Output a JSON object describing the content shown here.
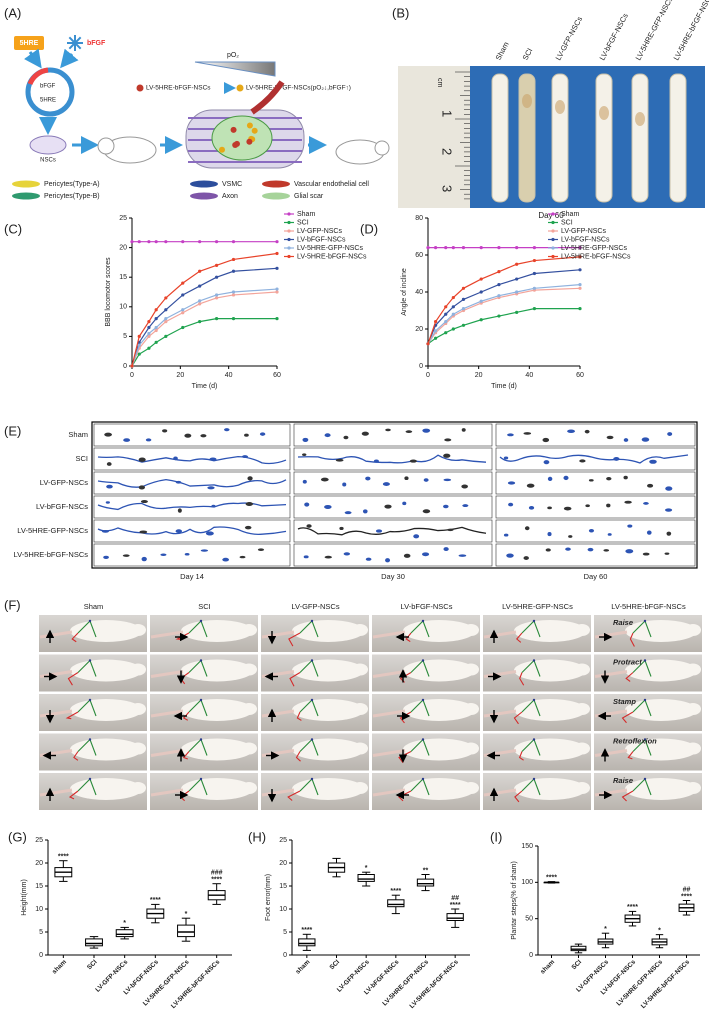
{
  "panel_labels": [
    "(A)",
    "(B)",
    "(C)",
    "(D)",
    "(E)",
    "(F)",
    "(G)",
    "(H)",
    "(I)"
  ],
  "diagram": {
    "gene": "5HRE",
    "growth_factor": "bFGF",
    "plasmid_labels": [
      "bFGF",
      "5HRE"
    ],
    "cells": "NSCs",
    "oxygen": "pO₂",
    "cell_before": "LV-5HRE-bFGF-NSCs",
    "cell_after": "LV-5HRE-bFGF-NSCs(pO₂↓,bFGF↑)",
    "legend": [
      "Pericytes(Type-A)",
      "Pericytes(Type-B)",
      "VSMC",
      "Axon",
      "Vascular endothelial cell",
      "Glial scar"
    ]
  },
  "spinal_cords": {
    "groups": [
      "Sham",
      "SCI",
      "LV-GFP-NSCs",
      "LV-bFGF-NSCs",
      "LV-5HRE-GFP-NSCs",
      "LV-5HRE-bFGF-NSCs"
    ],
    "caption": "Day 60",
    "ruler_unit": "cm",
    "ruler_marks": [
      "1",
      "2",
      "3"
    ]
  },
  "footprints": {
    "groups": [
      "Sham",
      "SCI",
      "LV-GFP-NSCs",
      "LV-bFGF-NSCs",
      "LV-5HRE-GFP-NSCs",
      "LV-5HRE-bFGF-NSCs"
    ],
    "days": [
      "Day 14",
      "Day 30",
      "Day 60"
    ]
  },
  "gait": {
    "groups": [
      "Sham",
      "SCI",
      "LV-GFP-NSCs",
      "LV-bFGF-NSCs",
      "LV-5HRE-GFP-NSCs",
      "LV-5HRE-bFGF-NSCs"
    ],
    "phases": [
      "Raise",
      "Protract",
      "Stamp",
      "Retroflexion",
      "Raise"
    ]
  },
  "chart_data": [
    {
      "type": "line",
      "ylabel": "BBB locomotor scores",
      "xlabel": "Time (d)",
      "legend": "upper right",
      "x": [
        0,
        3,
        7,
        10,
        14,
        21,
        28,
        35,
        42,
        60
      ],
      "xlim": [
        0,
        60
      ],
      "xticks": [
        0,
        20,
        40,
        60
      ],
      "ylim": [
        0,
        25
      ],
      "yticks": [
        0,
        5,
        10,
        15,
        20,
        25
      ],
      "series": [
        {
          "name": "Sham",
          "color": "#c53fc5",
          "values": [
            21,
            21,
            21,
            21,
            21,
            21,
            21,
            21,
            21,
            21
          ]
        },
        {
          "name": "SCI",
          "color": "#1fa34f",
          "values": [
            0,
            2,
            3,
            4,
            5,
            6.5,
            7.5,
            8,
            8,
            8
          ]
        },
        {
          "name": "LV-GFP-NSCs",
          "color": "#f3a49a",
          "values": [
            0,
            3,
            5,
            6,
            7.5,
            9,
            10.5,
            11.5,
            12,
            12.5
          ]
        },
        {
          "name": "LV-bFGF-NSCs",
          "color": "#34509f",
          "values": [
            0,
            4,
            6.5,
            8,
            9.5,
            12,
            13.5,
            15,
            16,
            16.5
          ]
        },
        {
          "name": "LV-5HRE-GFP-NSCs",
          "color": "#8fb2de",
          "values": [
            0,
            3.5,
            5.5,
            6.5,
            8,
            9.5,
            11,
            12,
            12.5,
            13
          ]
        },
        {
          "name": "LV-5HRE-bFGF-NSCs",
          "color": "#e8432a",
          "values": [
            0,
            5,
            7.5,
            9.5,
            11.5,
            14,
            16,
            17,
            18,
            19
          ]
        }
      ]
    },
    {
      "type": "line",
      "ylabel": "Angle of incline",
      "xlabel": "Time (d)",
      "legend": "upper right",
      "x": [
        0,
        3,
        7,
        10,
        14,
        21,
        28,
        35,
        42,
        60
      ],
      "xlim": [
        0,
        60
      ],
      "xticks": [
        0,
        20,
        40,
        60
      ],
      "ylim": [
        0,
        80
      ],
      "yticks": [
        0,
        20,
        40,
        60,
        80
      ],
      "series": [
        {
          "name": "Sham",
          "color": "#c53fc5",
          "values": [
            64,
            64,
            64,
            64,
            64,
            64,
            64,
            64,
            64,
            64
          ]
        },
        {
          "name": "SCI",
          "color": "#1fa34f",
          "values": [
            12,
            15,
            18,
            20,
            22,
            25,
            27,
            29,
            31,
            31
          ]
        },
        {
          "name": "LV-GFP-NSCs",
          "color": "#f3a49a",
          "values": [
            12,
            18,
            23,
            27,
            30,
            34,
            37,
            39,
            41,
            42
          ]
        },
        {
          "name": "LV-bFGF-NSCs",
          "color": "#34509f",
          "values": [
            12,
            22,
            28,
            32,
            36,
            40,
            44,
            47,
            50,
            52
          ]
        },
        {
          "name": "LV-5HRE-GFP-NSCs",
          "color": "#8fb2de",
          "values": [
            12,
            19,
            24,
            28,
            31,
            35,
            38,
            40,
            42,
            44
          ]
        },
        {
          "name": "LV-5HRE-bFGF-NSCs",
          "color": "#e8432a",
          "values": [
            12,
            24,
            32,
            37,
            42,
            47,
            51,
            55,
            57,
            59
          ]
        }
      ]
    },
    {
      "type": "box",
      "ylabel": "Height(mm)",
      "categories": [
        "sham",
        "SCI",
        "LV-GFP-NSCs",
        "LV-bFGF-NSCs",
        "LV-5HRE-GFP-NSCs",
        "LV-5HRE-bFGF-NSCs"
      ],
      "ylim": [
        0,
        25
      ],
      "yticks": [
        0,
        5,
        10,
        15,
        20,
        25
      ],
      "min": [
        16,
        1.5,
        3.5,
        7,
        3,
        11
      ],
      "q1": [
        17,
        2,
        4,
        8,
        4,
        12
      ],
      "median": [
        18,
        2.5,
        4.5,
        9,
        5,
        13
      ],
      "q3": [
        19,
        3.5,
        5.5,
        10,
        6.5,
        14
      ],
      "max": [
        20.5,
        4,
        6,
        11,
        8,
        15.5
      ],
      "significance": [
        "****",
        null,
        "*",
        "****",
        "*",
        "****"
      ],
      "significance_vs_lv_bfgf": [
        null,
        null,
        null,
        null,
        null,
        "###"
      ]
    },
    {
      "type": "box",
      "ylabel": "Foot error(mm)",
      "categories": [
        "sham",
        "SCI",
        "LV-GFP-NSCs",
        "LV-bFGF-NSCs",
        "LV-5HRE-GFP-NSCs",
        "LV-5HRE-bFGF-NSCs"
      ],
      "ylim": [
        0,
        25
      ],
      "yticks": [
        0,
        5,
        10,
        15,
        20,
        25
      ],
      "min": [
        1,
        17,
        15,
        9,
        14,
        6
      ],
      "q1": [
        2,
        18,
        16,
        10.5,
        15,
        7.5
      ],
      "median": [
        2.5,
        19,
        16.5,
        11,
        15.5,
        8
      ],
      "q3": [
        3.5,
        20,
        17.5,
        12,
        16.5,
        9
      ],
      "max": [
        4.5,
        21,
        18,
        13,
        17.5,
        10
      ],
      "significance": [
        "****",
        null,
        "*",
        "****",
        "**",
        "****"
      ],
      "significance_vs_lv_bfgf": [
        null,
        null,
        null,
        null,
        null,
        "##"
      ]
    },
    {
      "type": "box",
      "ylabel": "Plantar steps(% of sham)",
      "categories": [
        "sham",
        "SCI",
        "LV-GFP-NSCs",
        "LV-bFGF-NSCs",
        "LV-5HRE-GFP-NSCs",
        "LV-5HRE-bFGF-NSCs"
      ],
      "ylim": [
        0,
        150
      ],
      "yticks": [
        0,
        50,
        100,
        150
      ],
      "min": [
        99,
        3,
        10,
        40,
        10,
        55
      ],
      "q1": [
        100,
        6,
        15,
        45,
        14,
        60
      ],
      "median": [
        100,
        8,
        18,
        50,
        18,
        65
      ],
      "q3": [
        100,
        12,
        22,
        55,
        22,
        70
      ],
      "max": [
        101,
        15,
        30,
        60,
        28,
        75
      ],
      "significance": [
        "****",
        null,
        "*",
        "****",
        "*",
        "****"
      ],
      "significance_vs_lv_bfgf": [
        null,
        null,
        null,
        null,
        null,
        "##"
      ]
    }
  ]
}
